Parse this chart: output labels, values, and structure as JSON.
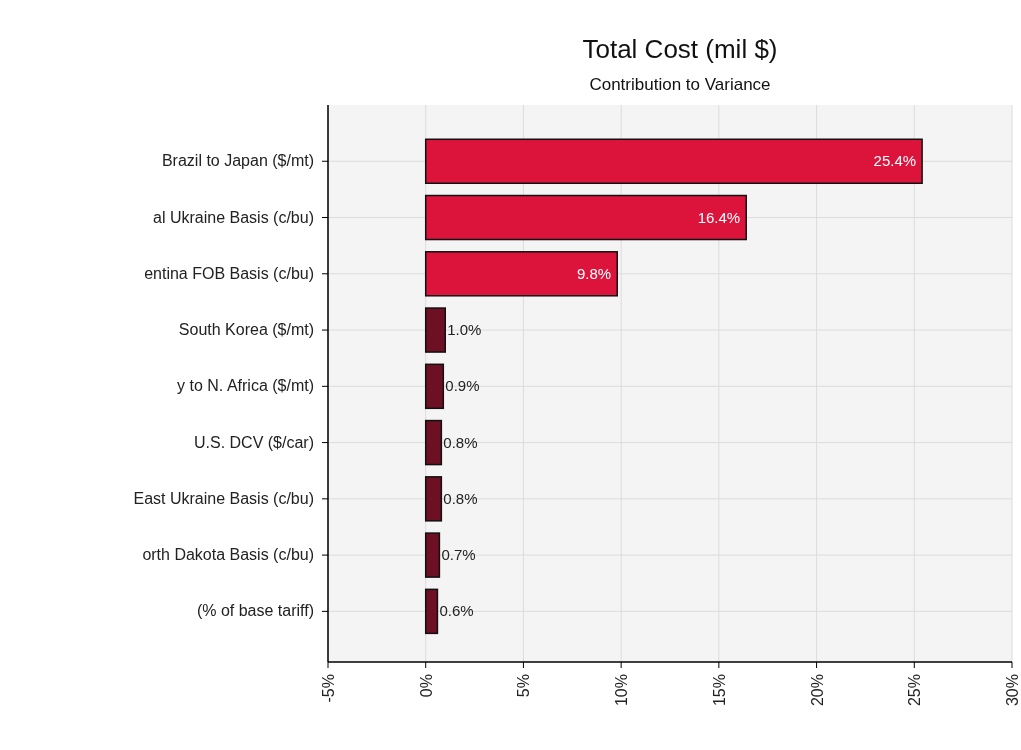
{
  "chart_data": {
    "type": "bar",
    "orientation": "horizontal",
    "title": "Total Cost (mil $)",
    "subtitle": "Contribution to Variance",
    "categories": [
      "Brazil to Japan ($/mt)",
      "al Ukraine Basis (c/bu)",
      "entina FOB Basis (c/bu)",
      "South Korea ($/mt)",
      "y to N. Africa ($/mt)",
      "U.S. DCV ($/car)",
      "East Ukraine Basis (c/bu)",
      "orth Dakota Basis (c/bu)",
      "(% of base tariff)"
    ],
    "values": [
      25.4,
      16.4,
      9.8,
      1.0,
      0.9,
      0.8,
      0.8,
      0.7,
      0.6
    ],
    "value_labels": [
      "25.4%",
      "16.4%",
      "9.8%",
      "1.0%",
      "0.9%",
      "0.8%",
      "0.8%",
      "0.7%",
      "0.6%"
    ],
    "colors": [
      "#dc143c",
      "#dc143c",
      "#dc143c",
      "#6e1024",
      "#6e1024",
      "#6e1024",
      "#6e1024",
      "#6e1024",
      "#6e1024"
    ],
    "xlim": [
      -5,
      30
    ],
    "xticks": [
      {
        "value": -5,
        "label": "-5%"
      },
      {
        "value": 0,
        "label": "0%"
      },
      {
        "value": 5,
        "label": "5%"
      },
      {
        "value": 10,
        "label": "10%"
      },
      {
        "value": 15,
        "label": "15%"
      },
      {
        "value": 20,
        "label": "20%"
      },
      {
        "value": 25,
        "label": "25%"
      },
      {
        "value": 30,
        "label": "30%"
      }
    ],
    "grid": true
  }
}
